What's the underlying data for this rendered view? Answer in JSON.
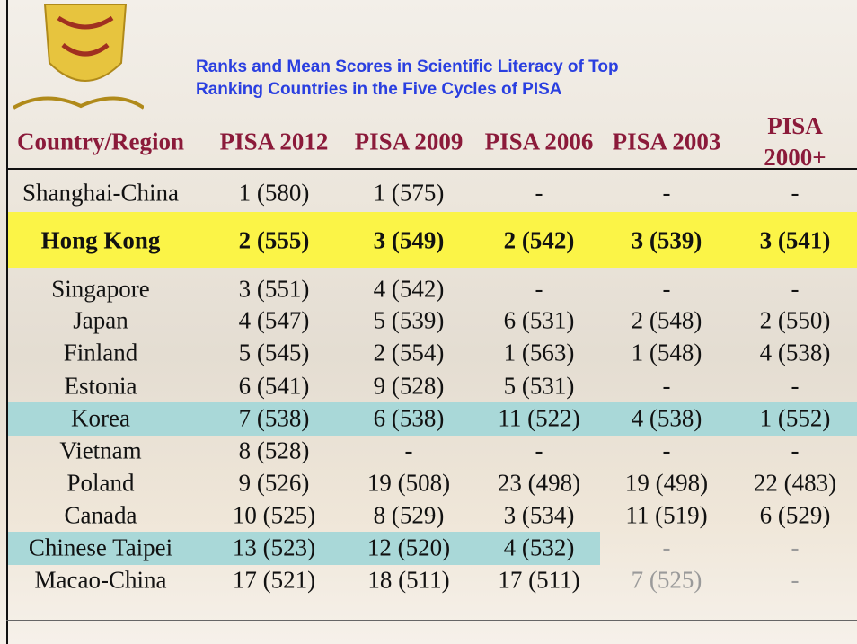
{
  "header": {
    "title": [
      "Ranks and Mean Scores in Scientific Literacy of Top",
      "Ranking Countries in the Five Cycles of PISA"
    ]
  },
  "table": {
    "columns": [
      "Country/Region",
      "PISA 2012",
      "PISA 2009",
      "PISA 2006",
      "PISA 2003",
      "PISA 2000+"
    ],
    "rows": [
      [
        "Shanghai-China",
        "1 (580)",
        "1 (575)",
        "-",
        "-",
        "-"
      ],
      [
        "Hong Kong",
        "2 (555)",
        "3 (549)",
        "2 (542)",
        "3 (539)",
        "3 (541)"
      ],
      [
        "Singapore",
        "3 (551)",
        "4 (542)",
        "-",
        "-",
        "-"
      ],
      [
        "Japan",
        "4 (547)",
        "5 (539)",
        "6 (531)",
        "2 (548)",
        "2 (550)"
      ],
      [
        "Finland",
        "5 (545)",
        "2 (554)",
        "1 (563)",
        "1 (548)",
        "4 (538)"
      ],
      [
        "Estonia",
        "6 (541)",
        "9 (528)",
        "5 (531)",
        "-",
        "-"
      ],
      [
        "Korea",
        "7 (538)",
        "6 (538)",
        "11 (522)",
        "4 (538)",
        "1 (552)"
      ],
      [
        "Vietnam",
        "8 (528)",
        "-",
        "-",
        "-",
        "-"
      ],
      [
        "Poland",
        "9 (526)",
        "19 (508)",
        "23 (498)",
        "19 (498)",
        "22 (483)"
      ],
      [
        "Canada",
        "10 (525)",
        "8 (529)",
        "3 (534)",
        "11 (519)",
        "6 (529)"
      ],
      [
        "Chinese Taipei",
        "13 (523)",
        "12 (520)",
        "4 (532)",
        "-",
        "-"
      ],
      [
        "Macao-China",
        "17 (521)",
        "18 (511)",
        "17 (511)",
        "7 (525)",
        "-"
      ]
    ]
  }
}
